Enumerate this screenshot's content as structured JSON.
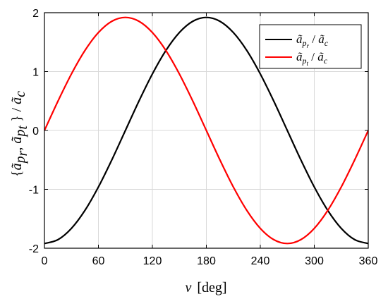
{
  "chart_data": {
    "type": "line",
    "xlabel": {
      "symbol": "ν",
      "unit": "[deg]"
    },
    "ylabel": "{ã_pr, ã_pt} / ã_c",
    "xlim": [
      0,
      360
    ],
    "ylim": [
      -2,
      2
    ],
    "xticks": [
      0,
      60,
      120,
      180,
      240,
      300,
      360
    ],
    "yticks": [
      -2,
      -1,
      0,
      1,
      2
    ],
    "grid": true,
    "legend_position": "top-right",
    "series": [
      {
        "name": "ã_pr / ã_c",
        "color": "#000000",
        "x": [
          0,
          15,
          30,
          45,
          60,
          75,
          90,
          105,
          120,
          135,
          150,
          165,
          180,
          195,
          210,
          225,
          240,
          255,
          270,
          285,
          300,
          315,
          330,
          345,
          360
        ],
        "y": [
          -1.92,
          -1.855,
          -1.663,
          -1.358,
          -0.96,
          -0.497,
          0.0,
          0.497,
          0.96,
          1.358,
          1.663,
          1.855,
          1.92,
          1.855,
          1.663,
          1.358,
          0.96,
          0.497,
          0.0,
          -0.497,
          -0.96,
          -1.358,
          -1.663,
          -1.855,
          -1.92
        ]
      },
      {
        "name": "ã_pt / ã_c",
        "color": "#ff0000",
        "x": [
          0,
          15,
          30,
          45,
          60,
          75,
          90,
          105,
          120,
          135,
          150,
          165,
          180,
          195,
          210,
          225,
          240,
          255,
          270,
          285,
          300,
          315,
          330,
          345,
          360
        ],
        "y": [
          0.0,
          0.497,
          0.96,
          1.358,
          1.663,
          1.855,
          1.92,
          1.855,
          1.663,
          1.358,
          0.96,
          0.497,
          0.0,
          -0.497,
          -0.96,
          -1.358,
          -1.663,
          -1.855,
          -1.92,
          -1.855,
          -1.663,
          -1.358,
          -0.96,
          -0.497,
          0.0
        ]
      }
    ]
  }
}
